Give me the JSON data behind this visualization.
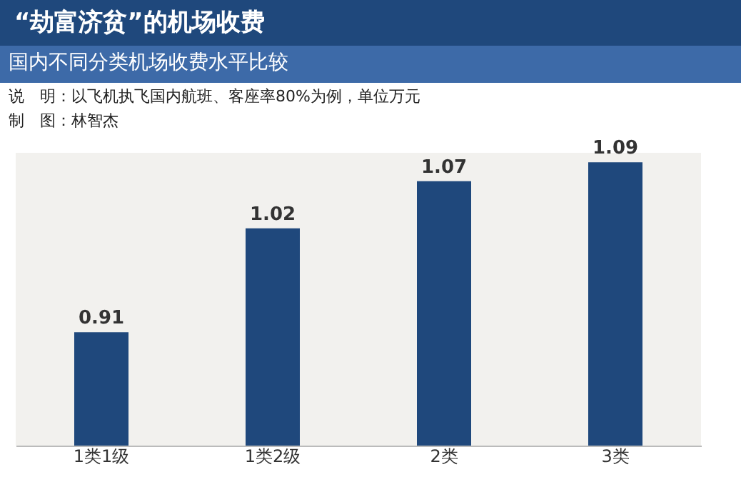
{
  "chart_data": {
    "type": "bar",
    "title": "“劫富济贫”的机场收费",
    "subtitle": "国内不同分类机场收费水平比较",
    "annotations": [
      "说　明：以飞机执飞国内航班、客座率80%为例，单位万元",
      "制　图：林智杰"
    ],
    "categories": [
      "1类1级",
      "1类2级",
      "2类",
      "3类"
    ],
    "values": [
      0.91,
      1.02,
      1.07,
      1.09
    ],
    "color": "#1f487c",
    "ylim": [
      0.79,
      1.1
    ],
    "tick_labels": "x",
    "data_labels": true
  }
}
